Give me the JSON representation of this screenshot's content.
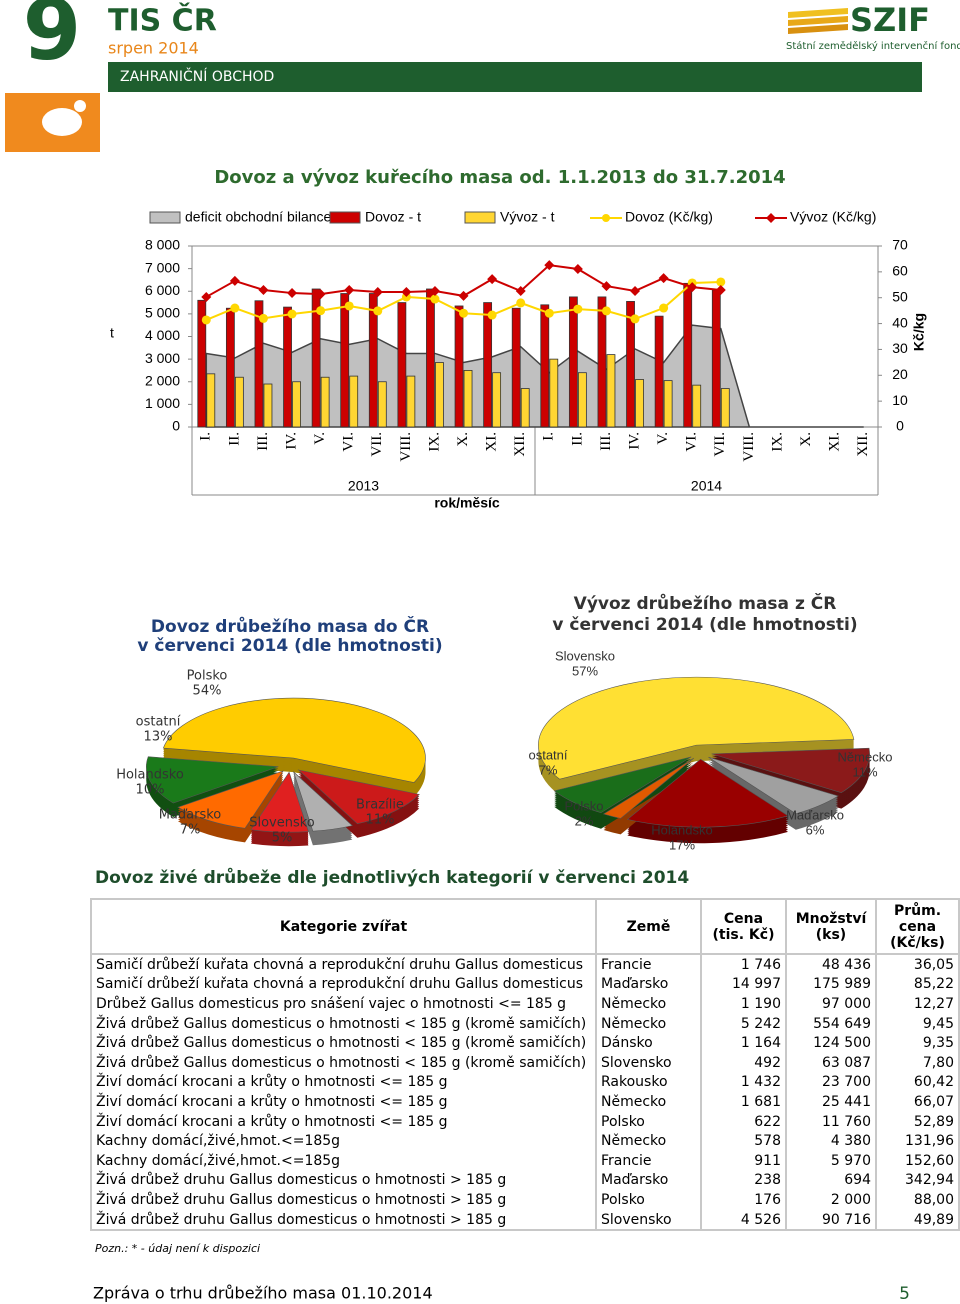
{
  "header": {
    "logo_number": "9",
    "logo_title": "TIS ČR",
    "issue": "srpen 2014",
    "section": "ZAHRANIČNÍ OBCHOD",
    "org_short": "SZIF",
    "org_name": "Státní zemědělský intervenční fond"
  },
  "chart_data": [
    {
      "type": "combo",
      "title": "Dovoz a vývoz kuřecího masa od. 1.1.2013 do 31.7.2014",
      "categories": [
        "I.",
        "II.",
        "III.",
        "IV.",
        "V.",
        "VI.",
        "VII.",
        "VIII.",
        "IX.",
        "X.",
        "XI.",
        "XII.",
        "I.",
        "II.",
        "III.",
        "IV.",
        "V.",
        "VI.",
        "VII.",
        "VIII.",
        "IX.",
        "X.",
        "XI.",
        "XII."
      ],
      "x_groups": [
        "2013",
        "2014"
      ],
      "xlabel": "rok/měsíc",
      "ylabel": "t",
      "y2label": "Kč/kg",
      "ylim": [
        0,
        8000
      ],
      "yticks": [
        0,
        {
          "value": 1000,
          "label": "1 000"
        },
        {
          "value": 2000,
          "label": "2 000"
        },
        {
          "value": 3000,
          "label": "3 000"
        },
        {
          "value": 4000,
          "label": "4 000"
        },
        {
          "value": 5000,
          "label": "5 000"
        },
        {
          "value": 6000,
          "label": "6 000"
        },
        {
          "value": 7000,
          "label": "7 000"
        },
        {
          "value": 8000,
          "label": "8 000"
        }
      ],
      "y2lim": [
        0,
        70
      ],
      "y2ticks": [
        0,
        10,
        20,
        30,
        40,
        50,
        60,
        70
      ],
      "series": [
        {
          "name": "deficit obchodní bilance",
          "type": "area",
          "color": "#c0c0c0",
          "values": [
            3250,
            3050,
            3700,
            3300,
            3900,
            3650,
            3900,
            3250,
            3250,
            2850,
            3100,
            3550,
            2400,
            3350,
            2550,
            3450,
            2850,
            4500,
            4350,
            0,
            0,
            0,
            0,
            0
          ]
        },
        {
          "name": "Dovoz - t",
          "type": "bar",
          "color": "#cc0000",
          "values": [
            5600,
            5250,
            5580,
            5300,
            6100,
            5900,
            5900,
            5500,
            6100,
            5350,
            5500,
            5250,
            5400,
            5750,
            5750,
            5550,
            4900,
            6350,
            6050,
            null,
            null,
            null,
            null,
            null
          ]
        },
        {
          "name": "Vývoz - t",
          "type": "bar",
          "color": "#ffd633",
          "values": [
            2350,
            2200,
            1900,
            2000,
            2200,
            2250,
            2000,
            2250,
            2850,
            2500,
            2400,
            1700,
            3000,
            2400,
            3200,
            2100,
            2050,
            1850,
            1700,
            null,
            null,
            null,
            null,
            null
          ]
        },
        {
          "name": "Dovoz (Kč/kg)",
          "type": "line",
          "axis": "y2",
          "color": "#ffd700",
          "marker": "circle",
          "values": [
            41.4,
            46,
            42,
            43.7,
            45,
            46.8,
            44.9,
            50.3,
            49.5,
            44,
            43.3,
            48,
            44,
            45.6,
            44.9,
            41.8,
            46,
            55.7,
            56.1,
            null,
            null,
            null,
            null,
            null
          ]
        },
        {
          "name": "Vývoz (Kč/kg)",
          "type": "line",
          "axis": "y2",
          "color": "#cc0000",
          "marker": "diamond",
          "values": [
            50.3,
            56.5,
            53,
            51.8,
            51.4,
            53,
            52.2,
            52.2,
            52.6,
            50.7,
            57.2,
            52.6,
            62.6,
            61.1,
            54.5,
            52.6,
            57.6,
            54.1,
            53,
            null,
            null,
            null,
            null,
            null
          ]
        }
      ]
    },
    {
      "type": "pie",
      "title": "Dovoz drůbežího masa do ČR",
      "subtitle": "v červenci 2014 (dle hmotnosti)",
      "categories": [
        "Polsko",
        "ostatní",
        "Holandsko",
        "Maďarsko",
        "Slovensko",
        "Brazílie"
      ],
      "values": [
        54,
        13,
        10,
        7,
        5,
        11
      ],
      "value_labels": [
        "54%",
        "13%",
        "10%",
        "7%",
        "5%",
        "11%"
      ],
      "colors": [
        "#ffcc00",
        "#1a7a1a",
        "#ff6a00",
        "#e02020",
        "#b0b0b0",
        "#cc1a1a"
      ]
    },
    {
      "type": "pie",
      "title": "Vývoz drůbežího masa z ČR",
      "subtitle": "v červenci 2014 (dle hmotnosti)",
      "categories": [
        "Slovensko",
        "Německo",
        "Maďarsko",
        "Holandsko",
        "Polsko",
        "ostatní"
      ],
      "values": [
        57,
        11,
        6,
        17,
        2,
        7
      ],
      "value_labels": [
        "57%",
        "11%",
        "6%",
        "17%",
        "2%",
        "7%"
      ],
      "colors": [
        "#ffe033",
        "#8b1a1a",
        "#a0a0a0",
        "#990000",
        "#e05a00",
        "#1a6e1a"
      ]
    }
  ],
  "table": {
    "title": "Dovoz živé drůbeže dle jednotlivých kategorií v červenci 2014",
    "columns": [
      "Kategorie zvířat",
      "Země",
      "Cena (tis. Kč)",
      "Množství (ks)",
      "Prům. cena (Kč/ks)"
    ],
    "rows": [
      [
        "Samičí drůbeží kuřata chovná a reprodukční druhu Gallus domesticus",
        "Francie",
        "1 746",
        "48 436",
        "36,05"
      ],
      [
        "Samičí drůbeží kuřata chovná a reprodukční druhu Gallus domesticus",
        "Maďarsko",
        "14 997",
        "175 989",
        "85,22"
      ],
      [
        "Drůbež Gallus domesticus pro snášení vajec o hmotnosti <= 185 g",
        "Německo",
        "1 190",
        "97 000",
        "12,27"
      ],
      [
        "Živá drůbež Gallus domesticus o hmotnosti < 185 g (kromě samičích)",
        "Německo",
        "5 242",
        "554 649",
        "9,45"
      ],
      [
        "Živá drůbež Gallus domesticus o hmotnosti < 185 g (kromě samičích)",
        "Dánsko",
        "1 164",
        "124 500",
        "9,35"
      ],
      [
        "Živá drůbež Gallus domesticus o hmotnosti < 185 g (kromě samičích)",
        "Slovensko",
        "492",
        "63 087",
        "7,80"
      ],
      [
        "Živí domácí krocani a krůty o hmotnosti <= 185 g",
        "Rakousko",
        "1 432",
        "23 700",
        "60,42"
      ],
      [
        "Živí domácí krocani a krůty o hmotnosti <= 185 g",
        "Německo",
        "1 681",
        "25 441",
        "66,07"
      ],
      [
        "Živí domácí krocani a krůty o hmotnosti <= 185 g",
        "Polsko",
        "622",
        "11 760",
        "52,89"
      ],
      [
        "Kachny domácí,živé,hmot.<=185g",
        "Německo",
        "578",
        "4 380",
        "131,96"
      ],
      [
        "Kachny domácí,živé,hmot.<=185g",
        "Francie",
        "911",
        "5 970",
        "152,60"
      ],
      [
        "Živá drůbež druhu Gallus domesticus o hmotnosti > 185 g",
        "Maďarsko",
        "238",
        "694",
        "342,94"
      ],
      [
        "Živá drůbež druhu Gallus domesticus o hmotnosti > 185 g",
        "Polsko",
        "176",
        "2 000",
        "88,00"
      ],
      [
        "Živá drůbež druhu Gallus domesticus o hmotnosti > 185 g",
        "Slovensko",
        "4 526",
        "90 716",
        "49,89"
      ]
    ],
    "note": "Pozn.: * - údaj není k dispozici"
  },
  "footer": {
    "text": "Zpráva o trhu drůbežího masa 01.10.2014",
    "page": "5"
  }
}
